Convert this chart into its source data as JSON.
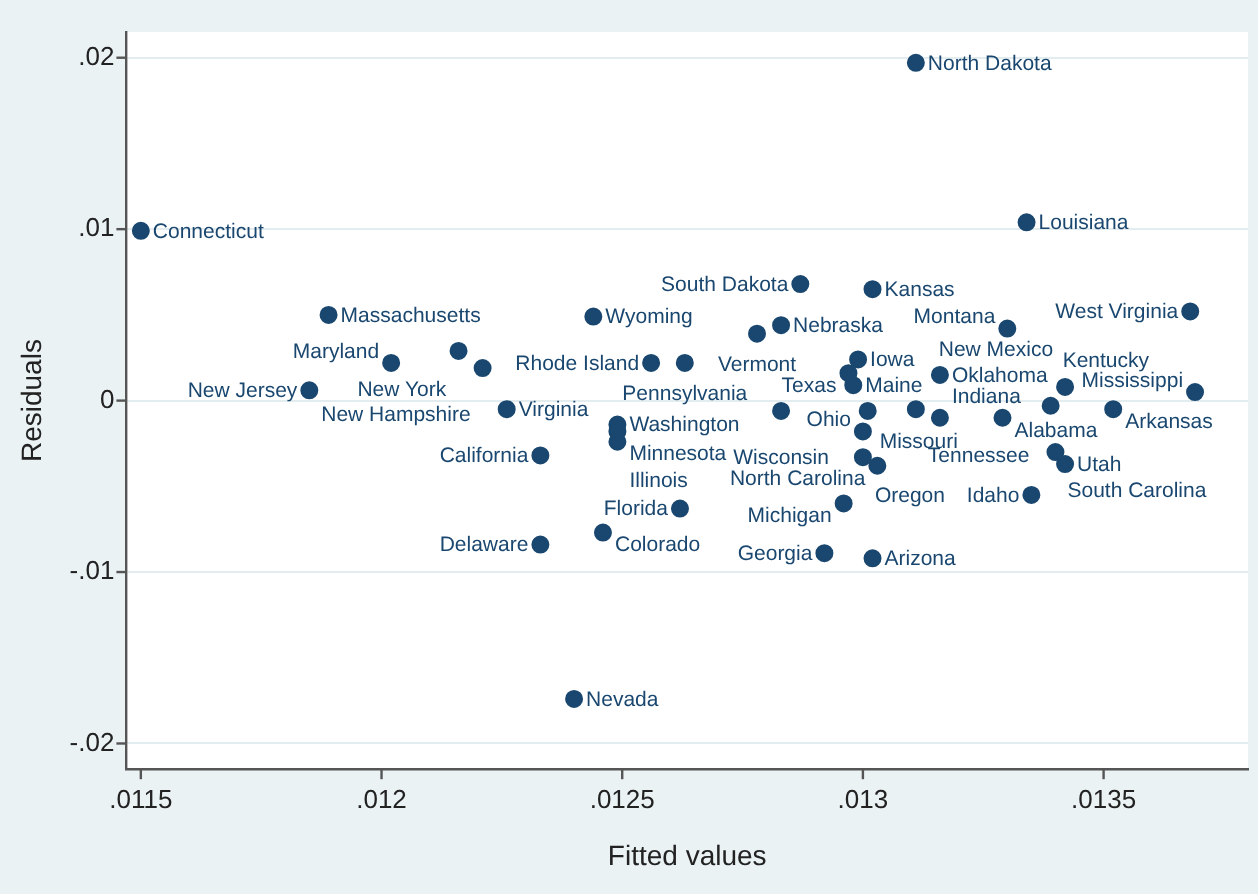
{
  "chart_data": {
    "type": "scatter",
    "xlabel": "Fitted values",
    "ylabel": "Residuals",
    "x": [
      0.0115,
      0.01311,
      0.01334,
      0.01189,
      0.01216,
      0.01202,
      0.01221,
      0.01185,
      0.01226,
      0.01233,
      0.01233,
      0.01244,
      0.01249,
      0.01249,
      0.01249,
      0.01287,
      0.01302,
      0.01283,
      0.01278,
      0.01256,
      0.01263,
      0.01299,
      0.01297,
      0.01298,
      0.01316,
      0.01283,
      0.01301,
      0.01311,
      0.013,
      0.013,
      0.01303,
      0.01296,
      0.01292,
      0.01302,
      0.01262,
      0.01246,
      0.01316,
      0.01329,
      0.01339,
      0.01352,
      0.01342,
      0.01369,
      0.01368,
      0.0133,
      0.0134,
      0.01342,
      0.01335,
      0.0124
    ],
    "series": [
      {
        "color": "#1a476f",
        "values": [
          0.0099,
          0.0197,
          0.0104,
          0.005,
          0.0029,
          0.0022,
          0.0019,
          0.0006,
          -0.0005,
          -0.0032,
          -0.0084,
          0.0049,
          -0.0014,
          -0.0018,
          -0.0024,
          0.0068,
          0.0065,
          0.0044,
          0.0039,
          0.0022,
          0.0022,
          0.0024,
          0.0016,
          0.0009,
          0.0015,
          -0.0006,
          -0.0006,
          -0.0005,
          -0.0018,
          -0.0033,
          -0.0038,
          -0.006,
          -0.0089,
          -0.0092,
          -0.0063,
          -0.0077,
          -0.001,
          -0.001,
          -0.0003,
          -0.0005,
          0.0008,
          0.0005,
          0.0052,
          0.0042,
          -0.003,
          -0.0037,
          -0.0055,
          -0.0174
        ],
        "value_labels": [
          "Connecticut",
          "North Dakota",
          "Louisiana",
          "Massachusetts",
          "New York",
          "Maryland",
          "New Hampshire",
          "New Jersey",
          "Virginia",
          "California",
          "Delaware",
          "Wyoming",
          "Washington",
          "Minnesota",
          "Illinois",
          "South Dakota",
          "Kansas",
          "Nebraska",
          "Vermont",
          "Rhode Island",
          "Pennsylvania",
          "Iowa",
          "Texas",
          "Maine",
          "Oklahoma",
          "Wisconsin",
          "Missouri",
          "Tennessee",
          "Ohio",
          "Oregon",
          "North Carolina",
          "Michigan",
          "Georgia",
          "Arizona",
          "Florida",
          "Colorado",
          "Indiana",
          "Alabama",
          "Kentucky",
          "Arkansas",
          "New Mexico",
          "Mississippi",
          "West Virginia",
          "Montana",
          "South Carolina",
          "Utah",
          "Idaho",
          "Nevada"
        ]
      }
    ],
    "xlim": [
      0.01147,
      0.0138
    ],
    "ylim": [
      -0.0215,
      0.0215
    ],
    "xticks": [
      {
        "value": 0.0115,
        "label": ".0115"
      },
      {
        "value": 0.012,
        "label": ".012"
      },
      {
        "value": 0.0125,
        "label": ".0125"
      },
      {
        "value": 0.013,
        "label": ".013"
      },
      {
        "value": 0.0135,
        "label": ".0135"
      }
    ],
    "yticks": [
      {
        "value": -0.02,
        "label": "-.02"
      },
      {
        "value": -0.01,
        "label": "-.01"
      },
      0,
      {
        "value": 0.01,
        "label": ".01"
      },
      {
        "value": 0.02,
        "label": ".02"
      }
    ],
    "grid": "y",
    "marker": "circle"
  }
}
